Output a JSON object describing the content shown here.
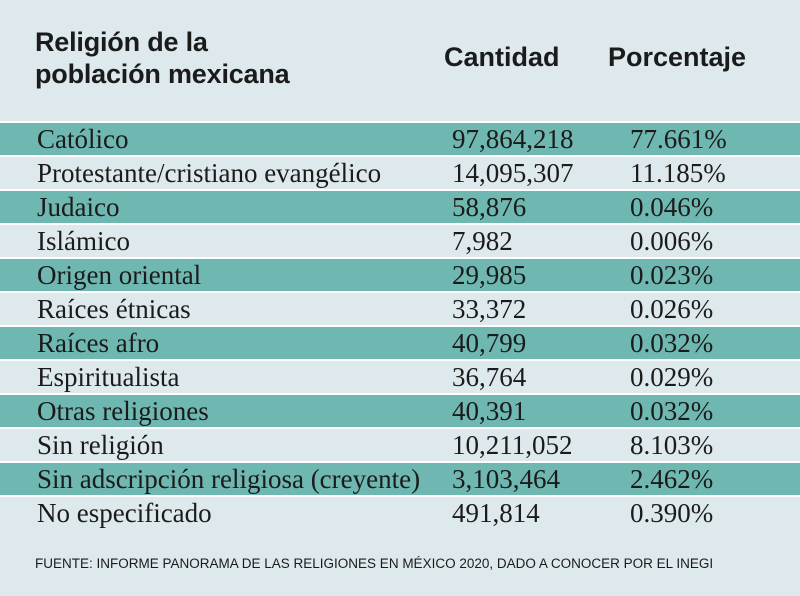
{
  "colors": {
    "background": "#dde9ec",
    "stripe": "#6fb7b1",
    "separator": "#ffffff",
    "text": "#1b1b1b"
  },
  "chart_data": {
    "type": "table",
    "title": "Religión de la población mexicana",
    "columns": [
      "Cantidad",
      "Porcentaje"
    ],
    "rows": [
      {
        "label": "Católico",
        "cantidad": "97,864,218",
        "porcentaje": "77.661%"
      },
      {
        "label": "Protestante/cristiano evangélico",
        "cantidad": "14,095,307",
        "porcentaje": "11.185%"
      },
      {
        "label": "Judaico",
        "cantidad": "58,876",
        "porcentaje": "0.046%"
      },
      {
        "label": "Islámico",
        "cantidad": "7,982",
        "porcentaje": "0.006%"
      },
      {
        "label": "Origen oriental",
        "cantidad": "29,985",
        "porcentaje": "0.023%"
      },
      {
        "label": "Raíces étnicas",
        "cantidad": "33,372",
        "porcentaje": "0.026%"
      },
      {
        "label": "Raíces afro",
        "cantidad": "40,799",
        "porcentaje": "0.032%"
      },
      {
        "label": "Espiritualista",
        "cantidad": "36,764",
        "porcentaje": "0.029%"
      },
      {
        "label": "Otras religiones",
        "cantidad": "40,391",
        "porcentaje": "0.032%"
      },
      {
        "label": "Sin religión",
        "cantidad": "10,211,052",
        "porcentaje": "8.103%"
      },
      {
        "label": "Sin adscripción religiosa (creyente)",
        "cantidad": "3,103,464",
        "porcentaje": "2.462%"
      },
      {
        "label": "No especificado",
        "cantidad": "491,814",
        "porcentaje": "0.390%"
      }
    ]
  },
  "footer": {
    "source": "FUENTE: INFORME PANORAMA DE LAS RELIGIONES EN MÉXICO 2020, DADO A CONOCER POR EL INEGI"
  }
}
